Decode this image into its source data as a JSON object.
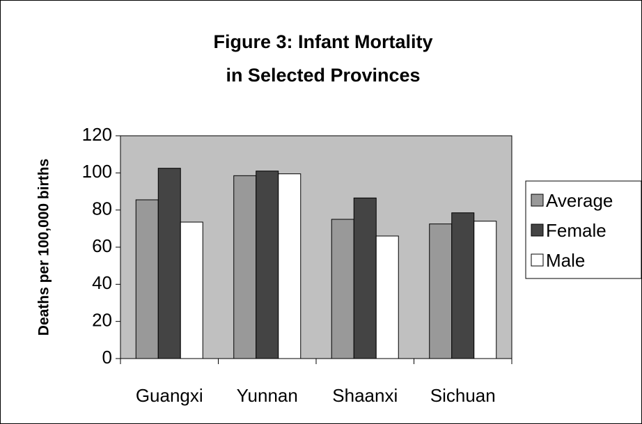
{
  "chart_data": {
    "type": "bar",
    "title": [
      "Figure 3:  Infant Mortality",
      "in Selected Provinces"
    ],
    "y_label": "Deaths per 100,000 births",
    "categories": [
      "Guangxi",
      "Yunnan",
      "Shaanxi",
      "Sichuan"
    ],
    "series": [
      {
        "name": "Average",
        "color": "#999999",
        "values": [
          85.5,
          98.5,
          75,
          72.5
        ]
      },
      {
        "name": "Female",
        "color": "#444444",
        "values": [
          102.5,
          101,
          86.5,
          78.5
        ]
      },
      {
        "name": "Male",
        "color": "#ffffff",
        "values": [
          73.5,
          99.5,
          66,
          74
        ]
      }
    ],
    "ylim": [
      0,
      120
    ],
    "yticks": [
      0,
      20,
      40,
      60,
      80,
      100,
      120
    ],
    "plot_background": "#c0c0c0",
    "legend": "right"
  }
}
